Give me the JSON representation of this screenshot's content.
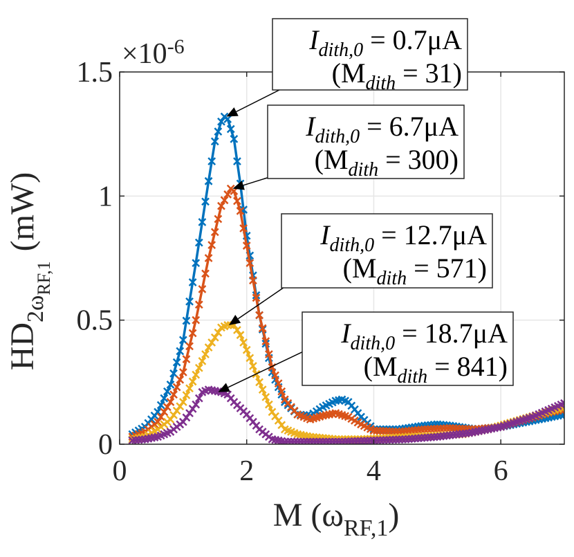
{
  "chart_data": {
    "type": "line",
    "title": "",
    "xlabel": "M (ω_RF,1)",
    "ylabel": "HD_2ω_RF,1 (mW)",
    "xlim": [
      0,
      7
    ],
    "ylim": [
      0,
      1.5
    ],
    "x_ticks": [
      0,
      2,
      4,
      6
    ],
    "x_tick_labels": [
      "0",
      "2",
      "4",
      "6"
    ],
    "y_ticks": [
      0,
      0.5,
      1,
      1.5
    ],
    "y_tick_labels": [
      "0",
      "0.5",
      "1",
      "1.5"
    ],
    "y_exponent_label": "×10-6",
    "grid": true,
    "marker": "x",
    "series": [
      {
        "name": "I_dith,0 = 0.7μA (M_dith = 31)",
        "color": "#0072BD",
        "points": [
          [
            0.2,
            0.04
          ],
          [
            0.4,
            0.07
          ],
          [
            0.6,
            0.13
          ],
          [
            0.8,
            0.24
          ],
          [
            1.0,
            0.42
          ],
          [
            1.2,
            0.73
          ],
          [
            1.4,
            1.06
          ],
          [
            1.5,
            1.22
          ],
          [
            1.6,
            1.3
          ],
          [
            1.65,
            1.32
          ],
          [
            1.7,
            1.31
          ],
          [
            1.8,
            1.23
          ],
          [
            1.9,
            1.05
          ],
          [
            2.0,
            0.84
          ],
          [
            2.2,
            0.52
          ],
          [
            2.4,
            0.29
          ],
          [
            2.6,
            0.17
          ],
          [
            2.8,
            0.12
          ],
          [
            3.0,
            0.115
          ],
          [
            3.2,
            0.15
          ],
          [
            3.4,
            0.175
          ],
          [
            3.5,
            0.18
          ],
          [
            3.6,
            0.17
          ],
          [
            3.8,
            0.11
          ],
          [
            4.0,
            0.06
          ],
          [
            4.4,
            0.06
          ],
          [
            4.8,
            0.075
          ],
          [
            5.0,
            0.08
          ],
          [
            5.2,
            0.075
          ],
          [
            5.6,
            0.06
          ],
          [
            6.0,
            0.07
          ],
          [
            6.4,
            0.09
          ],
          [
            6.8,
            0.11
          ],
          [
            7.0,
            0.12
          ]
        ]
      },
      {
        "name": "I_dith,0 = 6.7μA (M_dith = 300)",
        "color": "#D95319",
        "points": [
          [
            0.2,
            0.03
          ],
          [
            0.4,
            0.05
          ],
          [
            0.6,
            0.09
          ],
          [
            0.8,
            0.17
          ],
          [
            1.0,
            0.29
          ],
          [
            1.2,
            0.5
          ],
          [
            1.4,
            0.75
          ],
          [
            1.6,
            0.96
          ],
          [
            1.75,
            1.03
          ],
          [
            1.8,
            1.02
          ],
          [
            1.9,
            0.94
          ],
          [
            2.0,
            0.8
          ],
          [
            2.2,
            0.52
          ],
          [
            2.4,
            0.31
          ],
          [
            2.6,
            0.18
          ],
          [
            2.8,
            0.12
          ],
          [
            3.0,
            0.1
          ],
          [
            3.2,
            0.115
          ],
          [
            3.4,
            0.125
          ],
          [
            3.6,
            0.11
          ],
          [
            3.8,
            0.08
          ],
          [
            4.0,
            0.055
          ],
          [
            4.4,
            0.05
          ],
          [
            4.8,
            0.06
          ],
          [
            5.2,
            0.065
          ],
          [
            5.6,
            0.06
          ],
          [
            6.0,
            0.07
          ],
          [
            6.4,
            0.1
          ],
          [
            6.8,
            0.13
          ],
          [
            7.0,
            0.14
          ]
        ]
      },
      {
        "name": "I_dith,0 = 12.7μA (M_dith = 571)",
        "color": "#EDB120",
        "points": [
          [
            0.2,
            0.02
          ],
          [
            0.4,
            0.03
          ],
          [
            0.6,
            0.06
          ],
          [
            0.8,
            0.1
          ],
          [
            1.0,
            0.17
          ],
          [
            1.2,
            0.28
          ],
          [
            1.4,
            0.39
          ],
          [
            1.6,
            0.47
          ],
          [
            1.7,
            0.48
          ],
          [
            1.8,
            0.48
          ],
          [
            1.9,
            0.44
          ],
          [
            2.0,
            0.38
          ],
          [
            2.2,
            0.25
          ],
          [
            2.4,
            0.13
          ],
          [
            2.6,
            0.06
          ],
          [
            2.8,
            0.04
          ],
          [
            3.0,
            0.03
          ],
          [
            3.4,
            0.02
          ],
          [
            3.8,
            0.02
          ],
          [
            4.2,
            0.025
          ],
          [
            4.6,
            0.03
          ],
          [
            5.0,
            0.035
          ],
          [
            5.4,
            0.04
          ],
          [
            5.8,
            0.06
          ],
          [
            6.2,
            0.09
          ],
          [
            6.6,
            0.12
          ],
          [
            7.0,
            0.15
          ]
        ]
      },
      {
        "name": "I_dith,0 = 18.7μA (M_dith = 841)",
        "color": "#7E2F8E",
        "points": [
          [
            0.2,
            0.015
          ],
          [
            0.4,
            0.02
          ],
          [
            0.6,
            0.03
          ],
          [
            0.8,
            0.05
          ],
          [
            1.0,
            0.09
          ],
          [
            1.2,
            0.16
          ],
          [
            1.3,
            0.21
          ],
          [
            1.4,
            0.22
          ],
          [
            1.6,
            0.21
          ],
          [
            1.7,
            0.2
          ],
          [
            1.8,
            0.17
          ],
          [
            2.0,
            0.12
          ],
          [
            2.2,
            0.06
          ],
          [
            2.4,
            0.02
          ],
          [
            2.6,
            0.01
          ],
          [
            3.0,
            0.01
          ],
          [
            3.5,
            0.01
          ],
          [
            4.0,
            0.015
          ],
          [
            4.5,
            0.02
          ],
          [
            5.0,
            0.03
          ],
          [
            5.5,
            0.045
          ],
          [
            6.0,
            0.07
          ],
          [
            6.5,
            0.11
          ],
          [
            7.0,
            0.165
          ]
        ]
      }
    ],
    "annotations": [
      {
        "line1": "I",
        "sub": "dith,0",
        "rest": " = 0.7μA",
        "line2a": "(M",
        "line2sub": "dith",
        "line2b": " = 31)"
      },
      {
        "line1": "I",
        "sub": "dith,0",
        "rest": " = 6.7μA",
        "line2a": "(M",
        "line2sub": "dith",
        "line2b": " = 300)"
      },
      {
        "line1": "I",
        "sub": "dith,0",
        "rest": " = 12.7μA",
        "line2a": "(M",
        "line2sub": "dith",
        "line2b": " = 571)"
      },
      {
        "line1": "I",
        "sub": "dith,0",
        "rest": " = 18.7μA",
        "line2a": "(M",
        "line2sub": "dith",
        "line2b": " = 841)"
      }
    ],
    "ylabel_parts": {
      "main": "HD",
      "sub1": "2ω",
      "sub2": "RF,1",
      "unit": "(mW)"
    },
    "xlabel_parts": {
      "main": "M (ω",
      "sub": "RF,1",
      "close": ")"
    }
  }
}
